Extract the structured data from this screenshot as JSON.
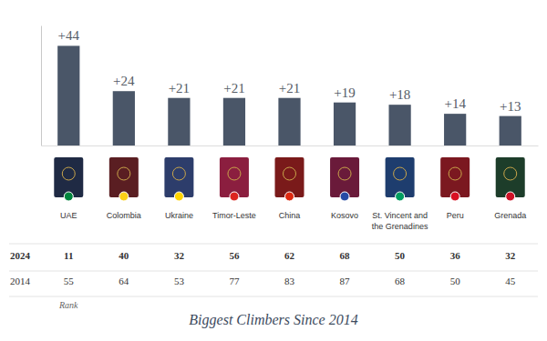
{
  "chart_data": {
    "type": "bar",
    "title": "Biggest Climbers Since 2014",
    "categories": [
      "UAE",
      "Colombia",
      "Ukraine",
      "Timor-Leste",
      "China",
      "Kosovo",
      "St. Vincent and the Grenadines",
      "Peru",
      "Grenada"
    ],
    "values": [
      44,
      24,
      21,
      21,
      21,
      19,
      18,
      14,
      13
    ],
    "value_labels": [
      "+44",
      "+24",
      "+21",
      "+21",
      "+21",
      "+19",
      "+18",
      "+14",
      "+13"
    ],
    "color": "#4a5668",
    "ylim": [
      0,
      53
    ],
    "data_labels": true,
    "tick_labels": "x",
    "grid": false
  },
  "rank_table": {
    "label": "Rank",
    "rows": [
      {
        "year": "2024",
        "values": [
          11,
          40,
          32,
          56,
          62,
          68,
          50,
          36,
          32
        ]
      },
      {
        "year": "2014",
        "values": [
          55,
          64,
          53,
          77,
          83,
          87,
          68,
          50,
          45
        ]
      }
    ]
  }
}
